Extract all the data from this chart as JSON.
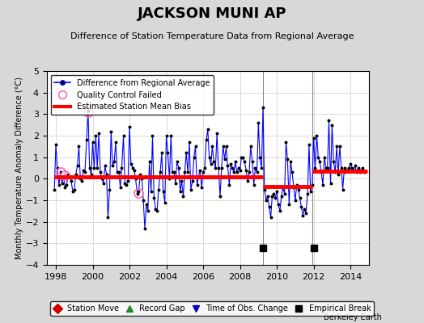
{
  "title": "JACKSON MUNI AP",
  "subtitle": "Difference of Station Temperature Data from Regional Average",
  "ylabel": "Monthly Temperature Anomaly Difference (°C)",
  "xlim": [
    1997.5,
    2015.0
  ],
  "ylim": [
    -4,
    5
  ],
  "yticks": [
    -4,
    -3,
    -2,
    -1,
    0,
    1,
    2,
    3,
    4,
    5
  ],
  "xticks": [
    1998,
    2000,
    2002,
    2004,
    2006,
    2008,
    2010,
    2012,
    2014
  ],
  "bg_color": "#d8d8d8",
  "plot_bg_color": "#ffffff",
  "line_color": "#0000ff",
  "marker_color": "#000000",
  "bias_color": "#ff0000",
  "qc_color": "#ff69b4",
  "empirical_break_times": [
    2009.25,
    2012.0
  ],
  "segment1_bias": 0.1,
  "segment2_bias": -0.35,
  "segment3_bias": 0.35,
  "break1": 2009.25,
  "break2": 2011.92,
  "start": 1997.9,
  "end": 2014.9,
  "qc_failed_times": [
    1999.75,
    1998.25,
    1998.5,
    2002.5
  ],
  "qc_failed_vals": [
    3.1,
    0.3,
    0.15,
    -0.65
  ],
  "data_x": [
    1997.92,
    1998.0,
    1998.08,
    1998.17,
    1998.25,
    1998.33,
    1998.42,
    1998.5,
    1998.58,
    1998.67,
    1998.75,
    1998.83,
    1998.92,
    1999.0,
    1999.08,
    1999.17,
    1999.25,
    1999.33,
    1999.42,
    1999.5,
    1999.58,
    1999.67,
    1999.75,
    1999.83,
    1999.92,
    2000.0,
    2000.08,
    2000.17,
    2000.25,
    2000.33,
    2000.42,
    2000.5,
    2000.58,
    2000.67,
    2000.75,
    2000.83,
    2000.92,
    2001.0,
    2001.08,
    2001.17,
    2001.25,
    2001.33,
    2001.42,
    2001.5,
    2001.58,
    2001.67,
    2001.75,
    2001.83,
    2001.92,
    2002.0,
    2002.08,
    2002.17,
    2002.25,
    2002.33,
    2002.42,
    2002.5,
    2002.58,
    2002.67,
    2002.75,
    2002.83,
    2002.92,
    2003.0,
    2003.08,
    2003.17,
    2003.25,
    2003.33,
    2003.42,
    2003.5,
    2003.58,
    2003.67,
    2003.75,
    2003.83,
    2003.92,
    2004.0,
    2004.08,
    2004.17,
    2004.25,
    2004.33,
    2004.42,
    2004.5,
    2004.58,
    2004.67,
    2004.75,
    2004.83,
    2004.92,
    2005.0,
    2005.08,
    2005.17,
    2005.25,
    2005.33,
    2005.42,
    2005.5,
    2005.58,
    2005.67,
    2005.75,
    2005.83,
    2005.92,
    2006.0,
    2006.08,
    2006.17,
    2006.25,
    2006.33,
    2006.42,
    2006.5,
    2006.58,
    2006.67,
    2006.75,
    2006.83,
    2006.92,
    2007.0,
    2007.08,
    2007.17,
    2007.25,
    2007.33,
    2007.42,
    2007.5,
    2007.58,
    2007.67,
    2007.75,
    2007.83,
    2007.92,
    2008.0,
    2008.08,
    2008.17,
    2008.25,
    2008.33,
    2008.42,
    2008.5,
    2008.58,
    2008.67,
    2008.75,
    2008.83,
    2008.92,
    2009.0,
    2009.08,
    2009.17,
    2009.25,
    2009.33,
    2009.42,
    2009.5,
    2009.58,
    2009.67,
    2009.75,
    2009.83,
    2009.92,
    2010.0,
    2010.08,
    2010.17,
    2010.25,
    2010.33,
    2010.42,
    2010.5,
    2010.58,
    2010.67,
    2010.75,
    2010.83,
    2010.92,
    2011.0,
    2011.08,
    2011.17,
    2011.25,
    2011.33,
    2011.42,
    2011.5,
    2011.58,
    2011.67,
    2011.75,
    2011.83,
    2011.92,
    2012.0,
    2012.08,
    2012.17,
    2012.25,
    2012.33,
    2012.42,
    2012.5,
    2012.58,
    2012.67,
    2012.75,
    2012.83,
    2012.92,
    2013.0,
    2013.08,
    2013.17,
    2013.25,
    2013.33,
    2013.42,
    2013.5,
    2013.58,
    2013.67,
    2013.75,
    2013.83,
    2013.92,
    2014.0,
    2014.08,
    2014.17,
    2014.25,
    2014.33,
    2014.42,
    2014.5,
    2014.58,
    2014.67,
    2014.75
  ],
  "data_y": [
    -0.5,
    1.6,
    0.5,
    -0.3,
    0.3,
    -0.2,
    0.1,
    -0.4,
    -0.3,
    0.2,
    0.1,
    -0.1,
    -0.6,
    -0.5,
    0.2,
    0.6,
    1.5,
    0.0,
    -0.1,
    0.4,
    0.3,
    1.8,
    3.15,
    0.5,
    0.2,
    1.7,
    0.5,
    2.0,
    0.5,
    2.1,
    0.3,
    0.0,
    -0.2,
    0.6,
    0.2,
    -1.8,
    -0.5,
    2.2,
    0.6,
    0.8,
    1.7,
    0.3,
    0.3,
    -0.4,
    0.5,
    2.0,
    -0.2,
    -0.3,
    -0.1,
    2.4,
    0.7,
    0.5,
    0.4,
    0.0,
    -0.7,
    -0.6,
    0.2,
    0.0,
    -1.0,
    -2.3,
    -1.2,
    -1.5,
    0.8,
    -0.6,
    2.0,
    -0.9,
    -1.4,
    -1.5,
    -0.5,
    0.3,
    1.2,
    -0.6,
    -1.1,
    2.0,
    1.2,
    0.0,
    2.0,
    0.3,
    0.3,
    -0.2,
    0.8,
    0.5,
    -0.6,
    -0.1,
    -0.8,
    0.3,
    1.2,
    0.3,
    1.7,
    -0.5,
    -0.1,
    1.0,
    1.5,
    -0.3,
    0.1,
    0.4,
    -0.4,
    0.3,
    0.5,
    1.8,
    2.3,
    1.0,
    0.7,
    1.5,
    0.8,
    0.5,
    2.1,
    0.5,
    -0.8,
    0.5,
    1.5,
    0.9,
    1.5,
    0.6,
    -0.3,
    0.7,
    0.5,
    0.3,
    0.8,
    0.3,
    0.5,
    0.4,
    1.0,
    1.0,
    0.8,
    0.4,
    -0.1,
    0.3,
    1.5,
    0.8,
    -0.3,
    0.5,
    0.3,
    2.6,
    1.0,
    0.5,
    3.3,
    -0.5,
    -1.0,
    -0.8,
    -1.3,
    -1.8,
    -0.8,
    -0.7,
    -0.9,
    -0.6,
    -1.2,
    -1.5,
    -0.8,
    -0.4,
    -0.7,
    1.7,
    0.9,
    -1.2,
    0.8,
    0.3,
    -0.4,
    -1.0,
    -0.3,
    -0.5,
    -0.9,
    -1.3,
    -1.7,
    -1.4,
    -1.6,
    -0.7,
    1.6,
    -0.6,
    -0.3,
    1.9,
    0.5,
    2.0,
    1.0,
    0.8,
    0.3,
    -0.3,
    1.0,
    0.5,
    0.5,
    2.7,
    -0.2,
    2.5,
    0.8,
    0.3,
    1.5,
    0.2,
    1.5,
    0.5,
    -0.5,
    0.5,
    0.3,
    0.4,
    0.5,
    0.7,
    0.5,
    0.4,
    0.6,
    0.3,
    0.5,
    0.3,
    0.4,
    0.5,
    0.3
  ],
  "vertical_lines": [
    2009.25,
    2011.92
  ],
  "vertical_line_color": "#888888"
}
